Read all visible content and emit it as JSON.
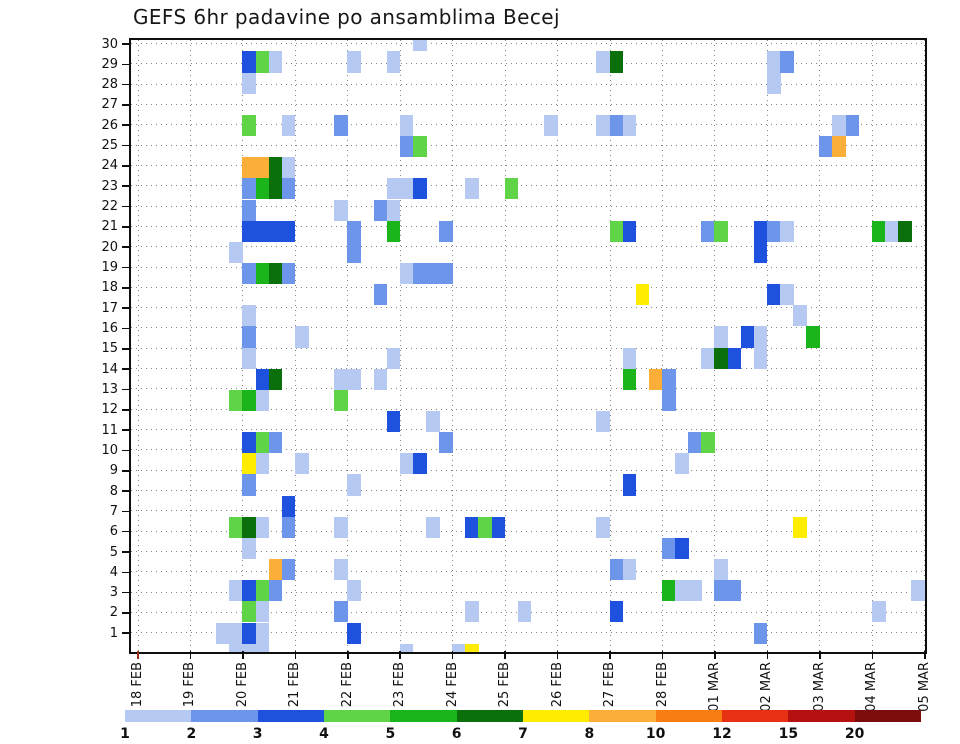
{
  "title": "GEFS 6hr padavine po ansamblima Becej",
  "chart_data": {
    "type": "heatmap",
    "title": "GEFS 6hr padavine po ansamblima Becej",
    "xlabel": "",
    "ylabel": "",
    "x_axis": {
      "day_labels": [
        "18 FEB",
        "19 FEB",
        "20 FEB",
        "21 FEB",
        "22 FEB",
        "23 FEB",
        "24 FEB",
        "25 FEB",
        "26 FEB",
        "27 FEB",
        "28 FEB",
        "01 MAR",
        "02 MAR",
        "03 MAR",
        "04 MAR",
        "05 MAR"
      ],
      "steps_per_day": 4,
      "step_hours": 6,
      "first_tick_color": "#9e2f1e"
    },
    "y_axis": {
      "label_min": 1,
      "label_max": 30,
      "tick_step": 1
    },
    "grid": {
      "style": "dotted",
      "color": "#6e6e6e"
    },
    "legend": {
      "position": "bottom",
      "values": [
        "1",
        "2",
        "3",
        "4",
        "5",
        "6",
        "7",
        "8",
        "10",
        "12",
        "15",
        "20"
      ],
      "colors": [
        "#b6c9f2",
        "#6d96ea",
        "#1e51dd",
        "#5fd446",
        "#1bb41b",
        "#0b6f0b",
        "#ffec00",
        "#fbae38",
        "#f87d12",
        "#e63113",
        "#b51111",
        "#7c0c0c"
      ]
    },
    "palette": {
      "1": "#b6c9f2",
      "2": "#6d96ea",
      "3": "#1e51dd",
      "4": "#5fd446",
      "5": "#1bb41b",
      "6": "#0b6f0b",
      "7": "#ffec00",
      "8": "#fbae38",
      "10": "#f87d12",
      "12": "#e63113",
      "15": "#b51111",
      "20": "#7c0c0c"
    },
    "cells": [
      {
        "member": 30,
        "step": 21,
        "level": 1
      },
      {
        "member": 29,
        "step": 8,
        "level": 3
      },
      {
        "member": 29,
        "step": 9,
        "level": 4
      },
      {
        "member": 29,
        "step": 10,
        "level": 1
      },
      {
        "member": 29,
        "step": 16,
        "level": 1
      },
      {
        "member": 29,
        "step": 19,
        "level": 1
      },
      {
        "member": 29,
        "step": 35,
        "level": 1
      },
      {
        "member": 29,
        "step": 36,
        "level": 6
      },
      {
        "member": 29,
        "step": 48,
        "level": 1
      },
      {
        "member": 29,
        "step": 49,
        "level": 2
      },
      {
        "member": 28,
        "step": 8,
        "level": 1
      },
      {
        "member": 28,
        "step": 48,
        "level": 1
      },
      {
        "member": 26,
        "step": 8,
        "level": 4
      },
      {
        "member": 26,
        "step": 11,
        "level": 1
      },
      {
        "member": 26,
        "step": 15,
        "level": 2
      },
      {
        "member": 26,
        "step": 20,
        "level": 1
      },
      {
        "member": 26,
        "step": 31,
        "level": 1
      },
      {
        "member": 26,
        "step": 35,
        "level": 1
      },
      {
        "member": 26,
        "step": 36,
        "level": 2
      },
      {
        "member": 26,
        "step": 37,
        "level": 1
      },
      {
        "member": 26,
        "step": 53,
        "level": 1
      },
      {
        "member": 26,
        "step": 54,
        "level": 2
      },
      {
        "member": 25,
        "step": 20,
        "level": 2
      },
      {
        "member": 25,
        "step": 21,
        "level": 4
      },
      {
        "member": 25,
        "step": 52,
        "level": 2
      },
      {
        "member": 25,
        "step": 53,
        "level": 8
      },
      {
        "member": 24,
        "step": 8,
        "level": 8
      },
      {
        "member": 24,
        "step": 9,
        "level": 8
      },
      {
        "member": 24,
        "step": 10,
        "level": 6
      },
      {
        "member": 24,
        "step": 11,
        "level": 1
      },
      {
        "member": 23,
        "step": 8,
        "level": 2
      },
      {
        "member": 23,
        "step": 9,
        "level": 5
      },
      {
        "member": 23,
        "step": 10,
        "level": 6
      },
      {
        "member": 23,
        "step": 11,
        "level": 2
      },
      {
        "member": 23,
        "step": 19,
        "level": 1
      },
      {
        "member": 23,
        "step": 20,
        "level": 1
      },
      {
        "member": 23,
        "step": 21,
        "level": 3
      },
      {
        "member": 23,
        "step": 25,
        "level": 1
      },
      {
        "member": 23,
        "step": 28,
        "level": 4
      },
      {
        "member": 22,
        "step": 8,
        "level": 2
      },
      {
        "member": 22,
        "step": 15,
        "level": 1
      },
      {
        "member": 22,
        "step": 18,
        "level": 2
      },
      {
        "member": 22,
        "step": 19,
        "level": 1
      },
      {
        "member": 21,
        "step": 8,
        "level": 3
      },
      {
        "member": 21,
        "step": 9,
        "level": 3
      },
      {
        "member": 21,
        "step": 10,
        "level": 3
      },
      {
        "member": 21,
        "step": 11,
        "level": 3
      },
      {
        "member": 21,
        "step": 16,
        "level": 2
      },
      {
        "member": 21,
        "step": 19,
        "level": 5
      },
      {
        "member": 21,
        "step": 23,
        "level": 2
      },
      {
        "member": 21,
        "step": 36,
        "level": 4
      },
      {
        "member": 21,
        "step": 37,
        "level": 3
      },
      {
        "member": 21,
        "step": 43,
        "level": 2
      },
      {
        "member": 21,
        "step": 44,
        "level": 4
      },
      {
        "member": 21,
        "step": 47,
        "level": 3
      },
      {
        "member": 21,
        "step": 48,
        "level": 2
      },
      {
        "member": 21,
        "step": 49,
        "level": 1
      },
      {
        "member": 21,
        "step": 56,
        "level": 5
      },
      {
        "member": 21,
        "step": 57,
        "level": 1
      },
      {
        "member": 21,
        "step": 58,
        "level": 6
      },
      {
        "member": 20,
        "step": 7,
        "level": 1
      },
      {
        "member": 20,
        "step": 16,
        "level": 2
      },
      {
        "member": 20,
        "step": 47,
        "level": 3
      },
      {
        "member": 19,
        "step": 8,
        "level": 2
      },
      {
        "member": 19,
        "step": 9,
        "level": 5
      },
      {
        "member": 19,
        "step": 10,
        "level": 6
      },
      {
        "member": 19,
        "step": 11,
        "level": 2
      },
      {
        "member": 19,
        "step": 20,
        "level": 1
      },
      {
        "member": 19,
        "step": 21,
        "level": 2
      },
      {
        "member": 19,
        "step": 22,
        "level": 2
      },
      {
        "member": 19,
        "step": 23,
        "level": 2
      },
      {
        "member": 18,
        "step": 18,
        "level": 2
      },
      {
        "member": 18,
        "step": 38,
        "level": 7
      },
      {
        "member": 18,
        "step": 48,
        "level": 3
      },
      {
        "member": 18,
        "step": 49,
        "level": 1
      },
      {
        "member": 17,
        "step": 8,
        "level": 1
      },
      {
        "member": 17,
        "step": 50,
        "level": 1
      },
      {
        "member": 16,
        "step": 8,
        "level": 2
      },
      {
        "member": 16,
        "step": 12,
        "level": 1
      },
      {
        "member": 16,
        "step": 44,
        "level": 1
      },
      {
        "member": 16,
        "step": 46,
        "level": 3
      },
      {
        "member": 16,
        "step": 47,
        "level": 1
      },
      {
        "member": 16,
        "step": 51,
        "level": 5
      },
      {
        "member": 15,
        "step": 8,
        "level": 1
      },
      {
        "member": 15,
        "step": 19,
        "level": 1
      },
      {
        "member": 15,
        "step": 37,
        "level": 1
      },
      {
        "member": 15,
        "step": 43,
        "level": 1
      },
      {
        "member": 15,
        "step": 44,
        "level": 6
      },
      {
        "member": 15,
        "step": 45,
        "level": 3
      },
      {
        "member": 15,
        "step": 47,
        "level": 1
      },
      {
        "member": 14,
        "step": 9,
        "level": 3
      },
      {
        "member": 14,
        "step": 10,
        "level": 6
      },
      {
        "member": 14,
        "step": 15,
        "level": 1
      },
      {
        "member": 14,
        "step": 16,
        "level": 1
      },
      {
        "member": 14,
        "step": 18,
        "level": 1
      },
      {
        "member": 14,
        "step": 37,
        "level": 5
      },
      {
        "member": 14,
        "step": 39,
        "level": 8
      },
      {
        "member": 14,
        "step": 40,
        "level": 2
      },
      {
        "member": 13,
        "step": 7,
        "level": 4
      },
      {
        "member": 13,
        "step": 8,
        "level": 5
      },
      {
        "member": 13,
        "step": 9,
        "level": 1
      },
      {
        "member": 13,
        "step": 15,
        "level": 4
      },
      {
        "member": 13,
        "step": 40,
        "level": 2
      },
      {
        "member": 12,
        "step": 19,
        "level": 3
      },
      {
        "member": 12,
        "step": 22,
        "level": 1
      },
      {
        "member": 12,
        "step": 35,
        "level": 1
      },
      {
        "member": 11,
        "step": 8,
        "level": 3
      },
      {
        "member": 11,
        "step": 9,
        "level": 4
      },
      {
        "member": 11,
        "step": 10,
        "level": 2
      },
      {
        "member": 11,
        "step": 23,
        "level": 2
      },
      {
        "member": 11,
        "step": 42,
        "level": 2
      },
      {
        "member": 11,
        "step": 43,
        "level": 4
      },
      {
        "member": 10,
        "step": 8,
        "level": 7
      },
      {
        "member": 10,
        "step": 9,
        "level": 1
      },
      {
        "member": 10,
        "step": 12,
        "level": 1
      },
      {
        "member": 10,
        "step": 20,
        "level": 1
      },
      {
        "member": 10,
        "step": 21,
        "level": 3
      },
      {
        "member": 10,
        "step": 41,
        "level": 1
      },
      {
        "member": 9,
        "step": 8,
        "level": 2
      },
      {
        "member": 9,
        "step": 16,
        "level": 1
      },
      {
        "member": 9,
        "step": 37,
        "level": 3
      },
      {
        "member": 8,
        "step": 11,
        "level": 3
      },
      {
        "member": 7,
        "step": 7,
        "level": 4
      },
      {
        "member": 7,
        "step": 8,
        "level": 6
      },
      {
        "member": 7,
        "step": 9,
        "level": 1
      },
      {
        "member": 7,
        "step": 11,
        "level": 2
      },
      {
        "member": 7,
        "step": 15,
        "level": 1
      },
      {
        "member": 7,
        "step": 22,
        "level": 1
      },
      {
        "member": 7,
        "step": 25,
        "level": 3
      },
      {
        "member": 7,
        "step": 26,
        "level": 4
      },
      {
        "member": 7,
        "step": 27,
        "level": 3
      },
      {
        "member": 7,
        "step": 35,
        "level": 1
      },
      {
        "member": 7,
        "step": 50,
        "level": 7
      },
      {
        "member": 6,
        "step": 8,
        "level": 1
      },
      {
        "member": 6,
        "step": 40,
        "level": 2
      },
      {
        "member": 6,
        "step": 41,
        "level": 3
      },
      {
        "member": 5,
        "step": 10,
        "level": 8
      },
      {
        "member": 5,
        "step": 11,
        "level": 2
      },
      {
        "member": 5,
        "step": 15,
        "level": 1
      },
      {
        "member": 5,
        "step": 36,
        "level": 2
      },
      {
        "member": 5,
        "step": 37,
        "level": 1
      },
      {
        "member": 5,
        "step": 44,
        "level": 1
      },
      {
        "member": 4,
        "step": 7,
        "level": 1
      },
      {
        "member": 4,
        "step": 8,
        "level": 3
      },
      {
        "member": 4,
        "step": 9,
        "level": 4
      },
      {
        "member": 4,
        "step": 10,
        "level": 2
      },
      {
        "member": 4,
        "step": 16,
        "level": 1
      },
      {
        "member": 4,
        "step": 40,
        "level": 5
      },
      {
        "member": 4,
        "step": 41,
        "level": 1
      },
      {
        "member": 4,
        "step": 42,
        "level": 1
      },
      {
        "member": 4,
        "step": 44,
        "level": 2
      },
      {
        "member": 4,
        "step": 45,
        "level": 2
      },
      {
        "member": 4,
        "step": 59,
        "level": 1
      },
      {
        "member": 3,
        "step": 8,
        "level": 4
      },
      {
        "member": 3,
        "step": 9,
        "level": 1
      },
      {
        "member": 3,
        "step": 15,
        "level": 2
      },
      {
        "member": 3,
        "step": 25,
        "level": 1
      },
      {
        "member": 3,
        "step": 29,
        "level": 1
      },
      {
        "member": 3,
        "step": 36,
        "level": 3
      },
      {
        "member": 3,
        "step": 56,
        "level": 1
      },
      {
        "member": 2,
        "step": 6,
        "level": 1
      },
      {
        "member": 2,
        "step": 7,
        "level": 1
      },
      {
        "member": 2,
        "step": 8,
        "level": 3
      },
      {
        "member": 2,
        "step": 9,
        "level": 1
      },
      {
        "member": 2,
        "step": 16,
        "level": 3
      },
      {
        "member": 2,
        "step": 47,
        "level": 2
      },
      {
        "member": 1,
        "step": 7,
        "level": 1
      },
      {
        "member": 1,
        "step": 8,
        "level": 1
      },
      {
        "member": 1,
        "step": 9,
        "level": 1
      },
      {
        "member": 1,
        "step": 20,
        "level": 1
      },
      {
        "member": 1,
        "step": 24,
        "level": 1
      },
      {
        "member": 1,
        "step": 25,
        "level": 7
      }
    ]
  }
}
